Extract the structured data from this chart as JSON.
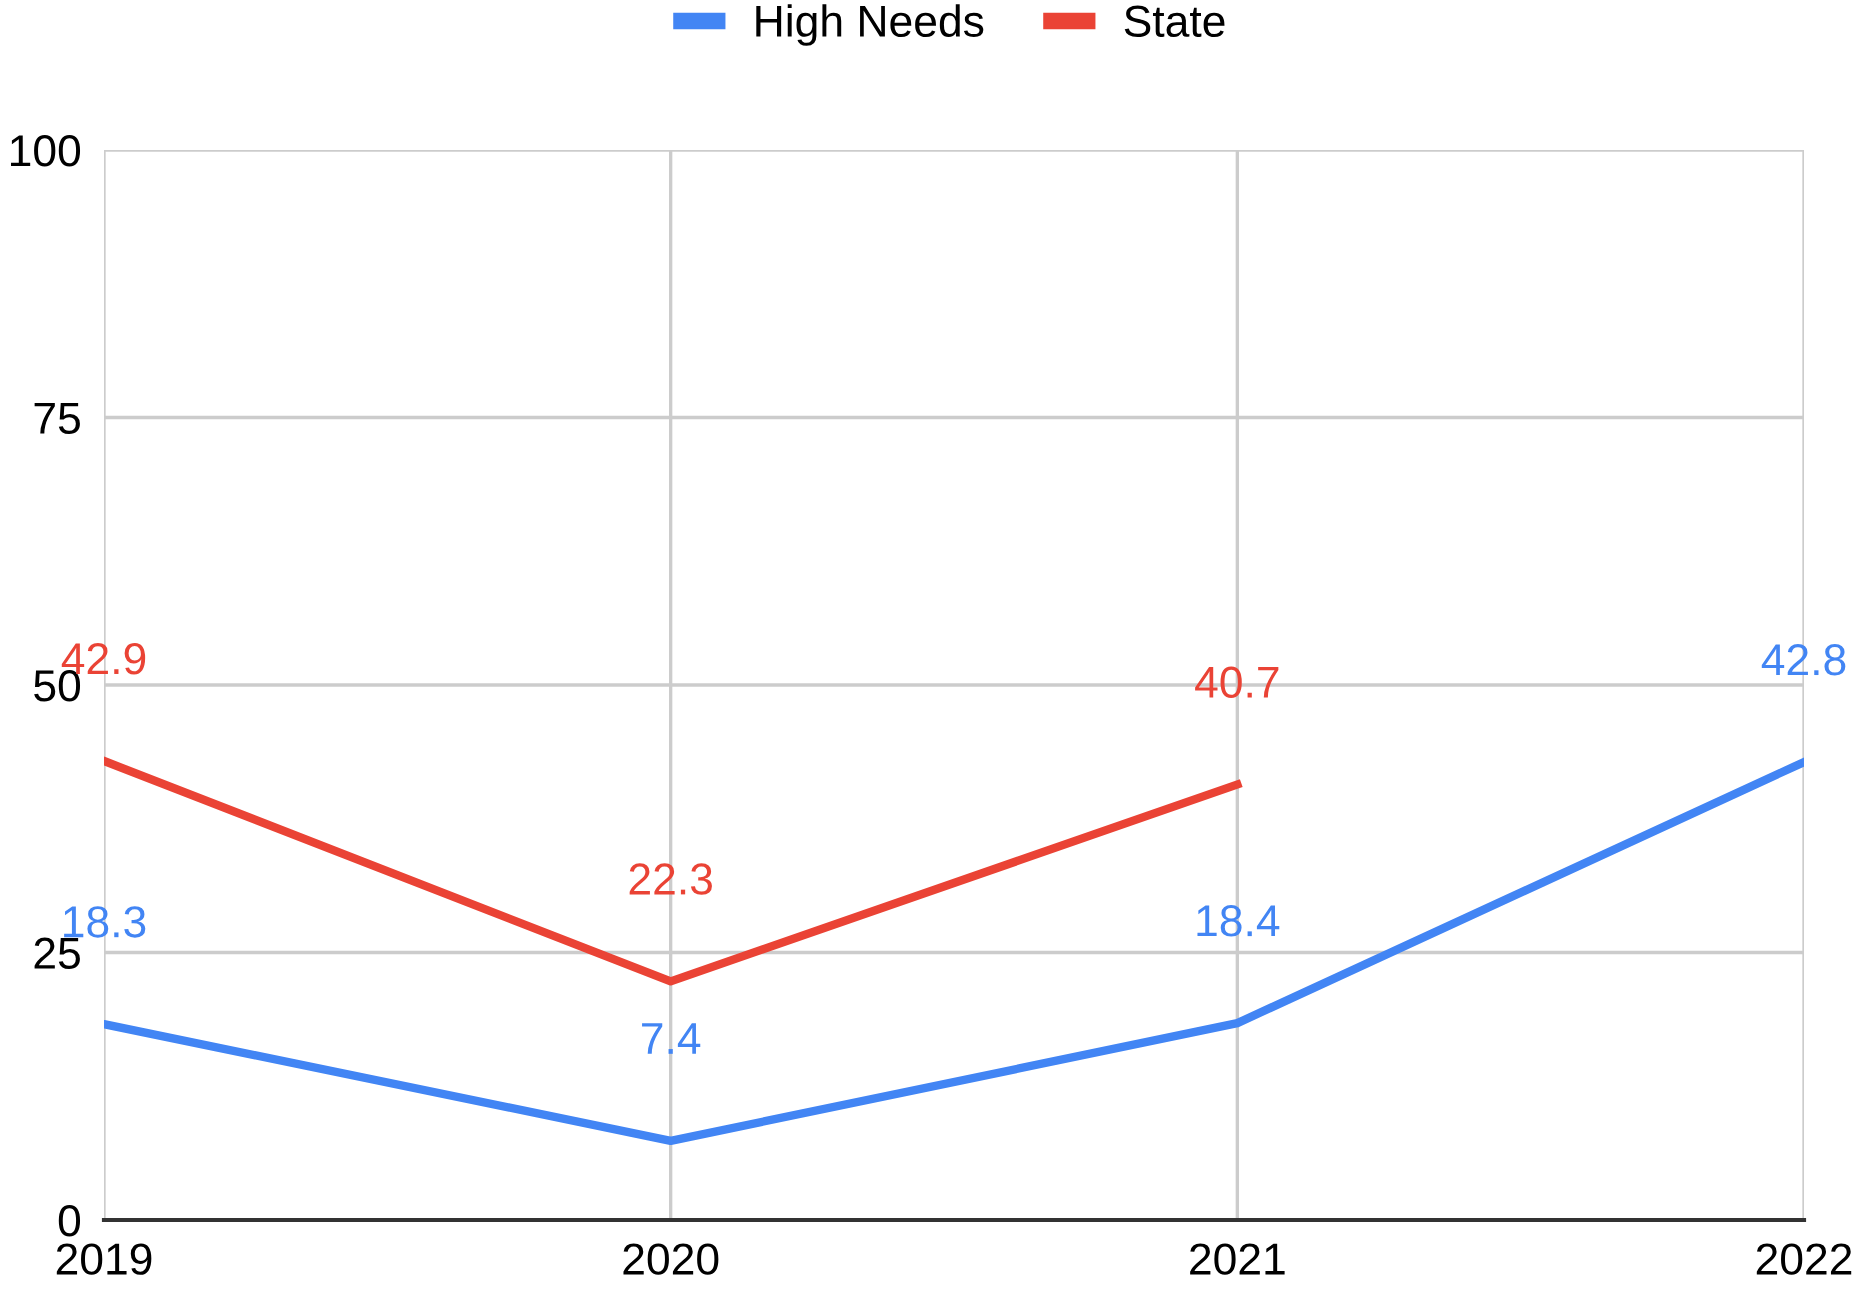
{
  "chart_data": {
    "type": "line",
    "categories": [
      "2019",
      "2020",
      "2021",
      "2022"
    ],
    "series": [
      {
        "name": "High Needs",
        "color": "#4285f4",
        "values": [
          18.3,
          7.4,
          18.4,
          42.8
        ]
      },
      {
        "name": "State",
        "color": "#ea4335",
        "values": [
          42.9,
          22.3,
          40.7,
          null
        ]
      }
    ],
    "ylim": [
      0,
      100
    ],
    "yticks": [
      0,
      25,
      50,
      75,
      100
    ],
    "grid": true,
    "legend": "top",
    "data_labels": true,
    "marker": "none",
    "line_style": "solid"
  }
}
